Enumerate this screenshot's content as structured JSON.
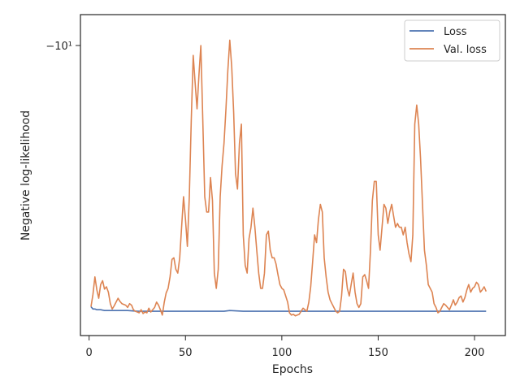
{
  "chart_data": {
    "type": "line",
    "xlabel": "Epochs",
    "ylabel": "Negative log-likelihood",
    "yscale": "symlog-negative",
    "x_ticks": [
      0,
      50,
      100,
      150,
      200
    ],
    "x_tick_labels": [
      "0",
      "50",
      "100",
      "150",
      "200"
    ],
    "y_tick_labels": [
      "−10¹"
    ],
    "xlim": [
      -4.5,
      216
    ],
    "grid": false,
    "legend_position": "top-right",
    "series": [
      {
        "name": "Loss",
        "color": "#4c72b0",
        "points": [
          [
            1,
            0.16
          ],
          [
            2,
            0.13
          ],
          [
            3,
            0.13
          ],
          [
            4,
            0.12
          ],
          [
            6,
            0.12
          ],
          [
            8,
            0.11
          ],
          [
            10,
            0.11
          ],
          [
            15,
            0.11
          ],
          [
            20,
            0.11
          ],
          [
            25,
            0.1
          ],
          [
            30,
            0.1
          ],
          [
            40,
            0.1
          ],
          [
            50,
            0.1
          ],
          [
            60,
            0.1
          ],
          [
            70,
            0.1
          ],
          [
            73,
            0.11
          ],
          [
            80,
            0.1
          ],
          [
            90,
            0.1
          ],
          [
            100,
            0.1
          ],
          [
            110,
            0.1
          ],
          [
            120,
            0.1
          ],
          [
            130,
            0.1
          ],
          [
            140,
            0.1
          ],
          [
            150,
            0.1
          ],
          [
            160,
            0.1
          ],
          [
            170,
            0.1
          ],
          [
            180,
            0.1
          ],
          [
            190,
            0.1
          ],
          [
            200,
            0.1
          ],
          [
            206,
            0.1
          ]
        ]
      },
      {
        "name": "Val. loss",
        "color": "#dd8452",
        "points": [
          [
            1,
            0.16
          ],
          [
            2,
            0.32
          ],
          [
            3,
            0.55
          ],
          [
            4,
            0.38
          ],
          [
            5,
            0.27
          ],
          [
            6,
            0.45
          ],
          [
            7,
            0.5
          ],
          [
            8,
            0.39
          ],
          [
            9,
            0.42
          ],
          [
            10,
            0.35
          ],
          [
            11,
            0.2
          ],
          [
            12,
            0.13
          ],
          [
            13,
            0.17
          ],
          [
            14,
            0.22
          ],
          [
            15,
            0.27
          ],
          [
            16,
            0.23
          ],
          [
            17,
            0.2
          ],
          [
            19,
            0.18
          ],
          [
            20,
            0.15
          ],
          [
            21,
            0.2
          ],
          [
            22,
            0.18
          ],
          [
            23,
            0.12
          ],
          [
            24,
            0.1
          ],
          [
            25,
            0.09
          ],
          [
            26,
            0.08
          ],
          [
            27,
            0.12
          ],
          [
            28,
            0.07
          ],
          [
            29,
            0.09
          ],
          [
            30,
            0.08
          ],
          [
            31,
            0.14
          ],
          [
            32,
            0.09
          ],
          [
            33,
            0.12
          ],
          [
            34,
            0.15
          ],
          [
            35,
            0.22
          ],
          [
            36,
            0.18
          ],
          [
            37,
            0.12
          ],
          [
            38,
            0.05
          ],
          [
            39,
            0.22
          ],
          [
            40,
            0.34
          ],
          [
            41,
            0.4
          ],
          [
            42,
            0.55
          ],
          [
            43,
            0.78
          ],
          [
            44,
            0.8
          ],
          [
            45,
            0.65
          ],
          [
            46,
            0.6
          ],
          [
            47,
            0.8
          ],
          [
            48,
            1.2
          ],
          [
            49,
            1.6
          ],
          [
            50,
            1.3
          ],
          [
            51,
            0.95
          ],
          [
            52,
            1.6
          ],
          [
            53,
            2.6
          ],
          [
            54,
            3.45
          ],
          [
            55,
            3.1
          ],
          [
            56,
            2.75
          ],
          [
            57,
            3.2
          ],
          [
            58,
            3.58
          ],
          [
            59,
            2.6
          ],
          [
            60,
            1.6
          ],
          [
            61,
            1.4
          ],
          [
            62,
            1.4
          ],
          [
            63,
            1.85
          ],
          [
            64,
            1.55
          ],
          [
            65,
            0.6
          ],
          [
            66,
            0.4
          ],
          [
            67,
            0.65
          ],
          [
            68,
            1.6
          ],
          [
            69,
            2.0
          ],
          [
            70,
            2.3
          ],
          [
            71,
            2.75
          ],
          [
            72,
            3.25
          ],
          [
            73,
            3.65
          ],
          [
            74,
            3.3
          ],
          [
            75,
            2.7
          ],
          [
            76,
            1.9
          ],
          [
            77,
            1.7
          ],
          [
            78,
            2.3
          ],
          [
            79,
            2.55
          ],
          [
            80,
            1.1
          ],
          [
            81,
            0.7
          ],
          [
            82,
            0.6
          ],
          [
            83,
            1.05
          ],
          [
            84,
            1.2
          ],
          [
            85,
            1.45
          ],
          [
            86,
            1.2
          ],
          [
            87,
            0.9
          ],
          [
            88,
            0.6
          ],
          [
            89,
            0.4
          ],
          [
            90,
            0.4
          ],
          [
            91,
            0.6
          ],
          [
            92,
            1.1
          ],
          [
            93,
            1.15
          ],
          [
            94,
            0.9
          ],
          [
            95,
            0.8
          ],
          [
            96,
            0.8
          ],
          [
            97,
            0.72
          ],
          [
            98,
            0.58
          ],
          [
            99,
            0.45
          ],
          [
            100,
            0.4
          ],
          [
            101,
            0.38
          ],
          [
            102,
            0.3
          ],
          [
            103,
            0.22
          ],
          [
            104,
            0.08
          ],
          [
            105,
            0.05
          ],
          [
            106,
            0.06
          ],
          [
            107,
            0.04
          ],
          [
            108,
            0.05
          ],
          [
            109,
            0.06
          ],
          [
            110,
            0.1
          ],
          [
            111,
            0.14
          ],
          [
            112,
            0.12
          ],
          [
            113,
            0.1
          ],
          [
            114,
            0.22
          ],
          [
            115,
            0.42
          ],
          [
            116,
            0.75
          ],
          [
            117,
            1.1
          ],
          [
            118,
            1.0
          ],
          [
            119,
            1.3
          ],
          [
            120,
            1.5
          ],
          [
            121,
            1.4
          ],
          [
            122,
            0.8
          ],
          [
            123,
            0.55
          ],
          [
            124,
            0.35
          ],
          [
            125,
            0.25
          ],
          [
            126,
            0.2
          ],
          [
            127,
            0.15
          ],
          [
            128,
            0.1
          ],
          [
            129,
            0.08
          ],
          [
            130,
            0.1
          ],
          [
            131,
            0.3
          ],
          [
            132,
            0.65
          ],
          [
            133,
            0.62
          ],
          [
            134,
            0.4
          ],
          [
            135,
            0.3
          ],
          [
            136,
            0.45
          ],
          [
            137,
            0.6
          ],
          [
            138,
            0.35
          ],
          [
            139,
            0.2
          ],
          [
            140,
            0.15
          ],
          [
            141,
            0.2
          ],
          [
            142,
            0.55
          ],
          [
            143,
            0.58
          ],
          [
            144,
            0.5
          ],
          [
            145,
            0.4
          ],
          [
            146,
            0.9
          ],
          [
            147,
            1.55
          ],
          [
            148,
            1.8
          ],
          [
            149,
            1.8
          ],
          [
            150,
            1.1
          ],
          [
            151,
            0.9
          ],
          [
            152,
            1.2
          ],
          [
            153,
            1.5
          ],
          [
            154,
            1.45
          ],
          [
            155,
            1.25
          ],
          [
            156,
            1.4
          ],
          [
            157,
            1.5
          ],
          [
            158,
            1.35
          ],
          [
            159,
            1.2
          ],
          [
            160,
            1.25
          ],
          [
            161,
            1.2
          ],
          [
            162,
            1.2
          ],
          [
            163,
            1.1
          ],
          [
            164,
            1.2
          ],
          [
            165,
            1.0
          ],
          [
            166,
            0.85
          ],
          [
            167,
            0.75
          ],
          [
            168,
            1.1
          ],
          [
            169,
            2.55
          ],
          [
            170,
            2.8
          ],
          [
            171,
            2.55
          ],
          [
            172,
            2.1
          ],
          [
            173,
            1.5
          ],
          [
            174,
            0.9
          ],
          [
            175,
            0.7
          ],
          [
            176,
            0.45
          ],
          [
            177,
            0.4
          ],
          [
            178,
            0.35
          ],
          [
            179,
            0.2
          ],
          [
            180,
            0.15
          ],
          [
            181,
            0.08
          ],
          [
            182,
            0.1
          ],
          [
            183,
            0.15
          ],
          [
            184,
            0.2
          ],
          [
            185,
            0.18
          ],
          [
            186,
            0.15
          ],
          [
            187,
            0.12
          ],
          [
            188,
            0.18
          ],
          [
            189,
            0.25
          ],
          [
            190,
            0.18
          ],
          [
            191,
            0.22
          ],
          [
            192,
            0.28
          ],
          [
            193,
            0.3
          ],
          [
            194,
            0.22
          ],
          [
            195,
            0.28
          ],
          [
            196,
            0.38
          ],
          [
            197,
            0.45
          ],
          [
            198,
            0.35
          ],
          [
            199,
            0.4
          ],
          [
            200,
            0.42
          ],
          [
            201,
            0.48
          ],
          [
            202,
            0.45
          ],
          [
            203,
            0.35
          ],
          [
            204,
            0.38
          ],
          [
            205,
            0.42
          ],
          [
            206,
            0.36
          ]
        ]
      }
    ]
  }
}
